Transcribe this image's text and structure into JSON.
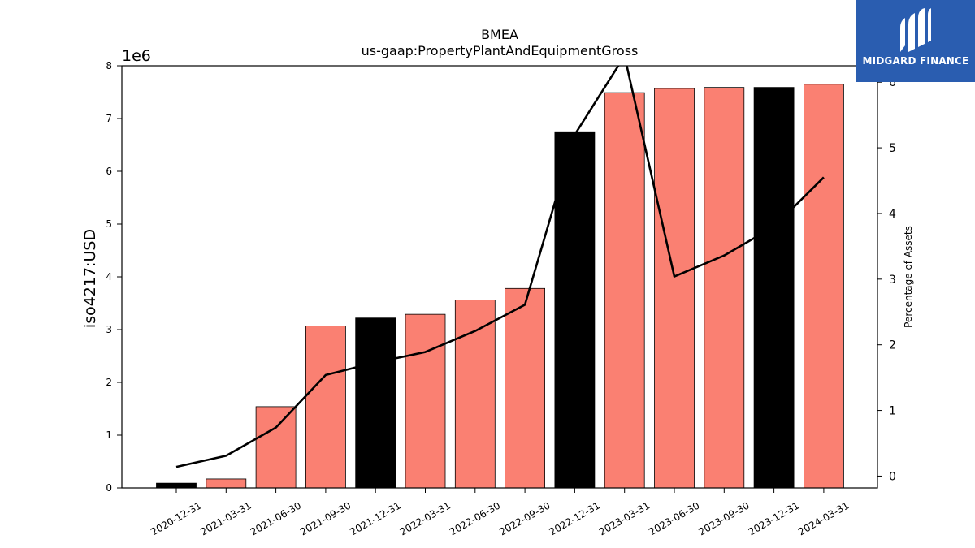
{
  "chart_data": {
    "type": "bar",
    "title": "BMEA",
    "subtitle": "us-gaap:PropertyPlantAndEquipmentGross",
    "ylabel": "iso4217:USD",
    "y2label": "Percentage of Assets",
    "y_offset_text": "1e6",
    "ylim": [
      0,
      8000000
    ],
    "y2lim": [
      -0.18,
      6.25
    ],
    "y_ticks": [
      0,
      1,
      2,
      3,
      4,
      5,
      6,
      7,
      8
    ],
    "y2_ticks": [
      0,
      1,
      2,
      3,
      4,
      5,
      6
    ],
    "categories": [
      "2020-12-31",
      "2021-03-31",
      "2021-06-30",
      "2021-09-30",
      "2021-12-31",
      "2022-03-31",
      "2022-06-30",
      "2022-09-30",
      "2022-12-31",
      "2023-03-31",
      "2023-06-30",
      "2023-09-30",
      "2023-12-31",
      "2024-03-31"
    ],
    "series": [
      {
        "type": "bar",
        "values": [
          90000,
          170000,
          1540000,
          3070000,
          3220000,
          3290000,
          3560000,
          3780000,
          6750000,
          7490000,
          7570000,
          7590000,
          7590000,
          7650000
        ],
        "colors": [
          "#000000",
          "#fa8072",
          "#fa8072",
          "#fa8072",
          "#000000",
          "#fa8072",
          "#fa8072",
          "#fa8072",
          "#000000",
          "#fa8072",
          "#fa8072",
          "#fa8072",
          "#000000",
          "#fa8072"
        ]
      },
      {
        "type": "line",
        "axis": "right",
        "color": "#000000",
        "values": [
          0.14,
          0.31,
          0.74,
          1.54,
          1.73,
          1.89,
          2.21,
          2.61,
          5.2,
          6.4,
          3.04,
          3.36,
          3.8,
          4.55
        ]
      }
    ],
    "grid": false
  },
  "branding": {
    "logo_text": "MIDGARD FINANCE",
    "logo_icon": "midgard-logo-icon",
    "logo_color": "#2a5db0"
  }
}
